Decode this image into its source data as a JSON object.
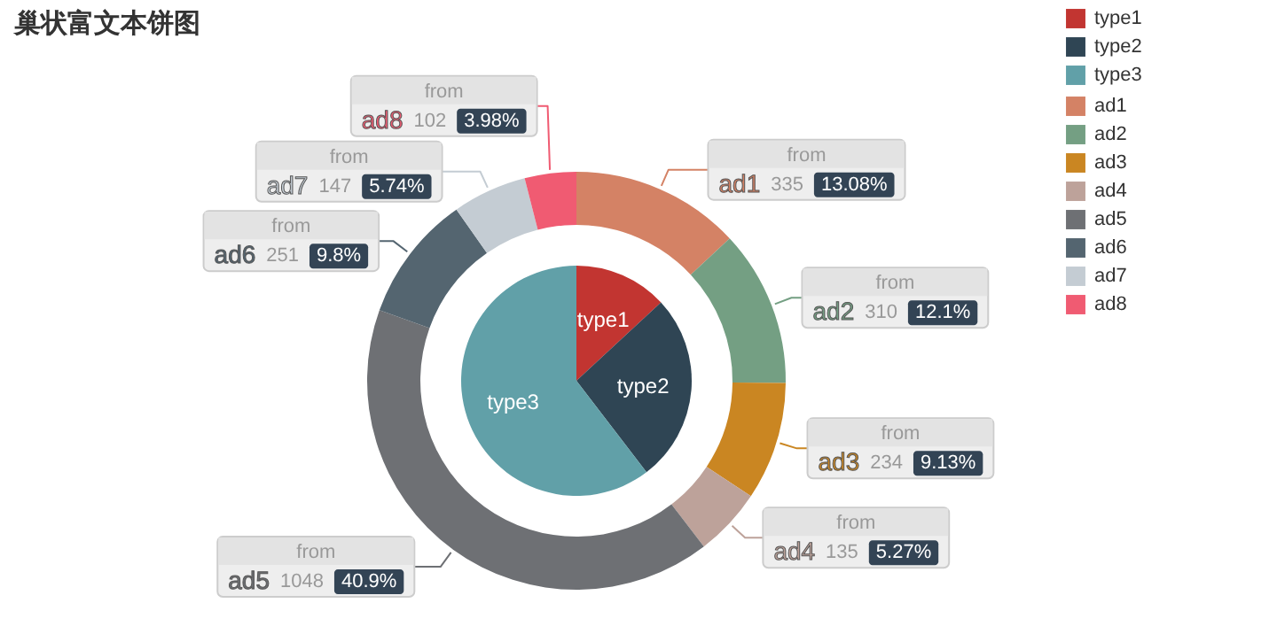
{
  "chart_data": [
    {
      "type": "pie",
      "title": "巢状富文本饼图",
      "categories": [
        "type1",
        "type2",
        "type3"
      ],
      "values": [
        13.1,
        26.5,
        60.4
      ],
      "colors": [
        "#c23531",
        "#2f4554",
        "#61a0a8"
      ],
      "legend": "top right"
    },
    {
      "type": "donut",
      "categories": [
        "ad1",
        "ad2",
        "ad3",
        "ad4",
        "ad5",
        "ad6",
        "ad7",
        "ad8"
      ],
      "values": [
        335,
        310,
        234,
        135,
        1048,
        251,
        147,
        102
      ],
      "colors": [
        "#d48265",
        "#749f83",
        "#ca8622",
        "#bda29a",
        "#6e7074",
        "#546570",
        "#c4ccd3",
        "#f05b72"
      ],
      "value_labels": [
        "335 13.08%",
        "310 12.1%",
        "234 9.13%",
        "135 5.27%",
        "1048 40.9%",
        "251 9.8%",
        "147 5.74%",
        "102 3.98%"
      ],
      "annotations": [
        "from",
        "from",
        "from",
        "from",
        "from",
        "from",
        "from",
        "from"
      ],
      "legend": "top right"
    }
  ]
}
